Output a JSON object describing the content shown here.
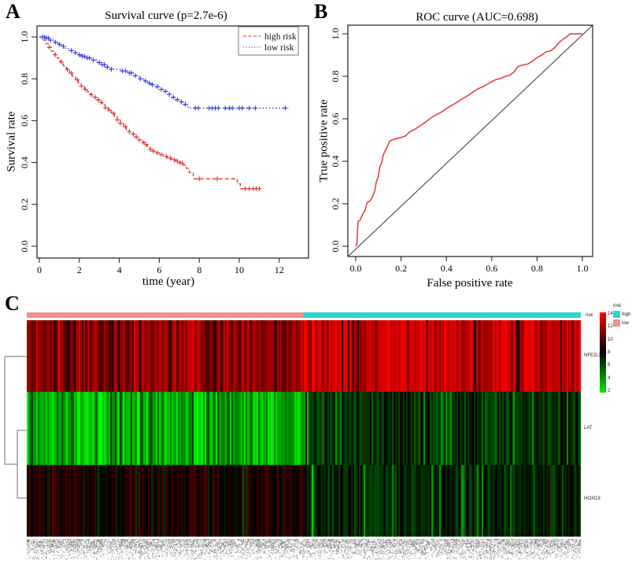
{
  "panels": {
    "a": {
      "label": "A",
      "title": "Survival curve (p=2.7e-6)",
      "xlabel": "time (year)",
      "ylabel": "Survival rate"
    },
    "b": {
      "label": "B",
      "title": "ROC curve (AUC=0.698)",
      "xlabel": "False positive rate",
      "ylabel": "True positive rate"
    },
    "c": {
      "label": "C",
      "annotation_label": "risk",
      "row_labels": [
        "NFE2L3",
        "LAT",
        "HOXD3"
      ],
      "colorbar_ticks": [
        "14",
        "12",
        "10",
        "8",
        "6",
        "4",
        "2"
      ],
      "legend_title": "risk",
      "legend_high": "high",
      "legend_low": "low",
      "high_color": "#2ed6d0",
      "low_color": "#f49090"
    }
  },
  "chart_data": [
    {
      "type": "line",
      "subtype": "kaplan-meier",
      "title": "Survival curve (p=2.7e-6)",
      "p_value": "2.7e-6",
      "xlabel": "time (year)",
      "ylabel": "Survival rate",
      "xlim": [
        0,
        13
      ],
      "ylim": [
        0,
        1
      ],
      "x_ticks": [
        0,
        2,
        4,
        6,
        8,
        10,
        12
      ],
      "y_ticks": [
        0.0,
        0.2,
        0.4,
        0.6,
        0.8,
        1.0
      ],
      "legend_position": "top-right",
      "series": [
        {
          "name": "high risk",
          "color": "#e23535",
          "linestyle": "dashed",
          "steps": [
            [
              0,
              1.0
            ],
            [
              0.15,
              0.985
            ],
            [
              0.3,
              0.968
            ],
            [
              0.45,
              0.95
            ],
            [
              0.6,
              0.932
            ],
            [
              0.75,
              0.915
            ],
            [
              0.9,
              0.898
            ],
            [
              1.05,
              0.88
            ],
            [
              1.2,
              0.862
            ],
            [
              1.35,
              0.845
            ],
            [
              1.5,
              0.828
            ],
            [
              1.65,
              0.812
            ],
            [
              1.8,
              0.796
            ],
            [
              1.95,
              0.78
            ],
            [
              2.1,
              0.765
            ],
            [
              2.25,
              0.75
            ],
            [
              2.4,
              0.738
            ],
            [
              2.55,
              0.724
            ],
            [
              2.7,
              0.712
            ],
            [
              2.85,
              0.7
            ],
            [
              3.0,
              0.688
            ],
            [
              3.15,
              0.675
            ],
            [
              3.3,
              0.662
            ],
            [
              3.45,
              0.65
            ],
            [
              3.6,
              0.636
            ],
            [
              3.75,
              0.62
            ],
            [
              3.9,
              0.604
            ],
            [
              4.05,
              0.588
            ],
            [
              4.2,
              0.572
            ],
            [
              4.35,
              0.558
            ],
            [
              4.5,
              0.547
            ],
            [
              4.65,
              0.536
            ],
            [
              4.8,
              0.522
            ],
            [
              4.95,
              0.508
            ],
            [
              5.1,
              0.497
            ],
            [
              5.25,
              0.486
            ],
            [
              5.4,
              0.473
            ],
            [
              5.55,
              0.463
            ],
            [
              5.7,
              0.454
            ],
            [
              5.85,
              0.447
            ],
            [
              6.0,
              0.438
            ],
            [
              6.2,
              0.43
            ],
            [
              6.4,
              0.422
            ],
            [
              6.6,
              0.414
            ],
            [
              6.8,
              0.407
            ],
            [
              7.0,
              0.398
            ],
            [
              7.2,
              0.388
            ],
            [
              7.35,
              0.372
            ],
            [
              7.5,
              0.352
            ],
            [
              7.7,
              0.322
            ],
            [
              9.2,
              0.322
            ],
            [
              9.9,
              0.299
            ],
            [
              10.05,
              0.275
            ],
            [
              11.0,
              0.275
            ]
          ],
          "censor_times": [
            0.5,
            0.8,
            1.1,
            1.4,
            1.6,
            1.9,
            2.1,
            2.3,
            2.6,
            2.8,
            2.95,
            3.1,
            3.3,
            3.5,
            3.7,
            3.9,
            4.05,
            4.3,
            4.5,
            4.7,
            4.85,
            5.0,
            5.2,
            5.35,
            5.55,
            5.7,
            5.9,
            6.1,
            6.35,
            6.55,
            6.75,
            6.9,
            7.05,
            7.15,
            8.0,
            8.9,
            10.3,
            10.5,
            10.7,
            10.85,
            11.0
          ]
        },
        {
          "name": "low risk",
          "color": "#3535d9",
          "linestyle": "dotted",
          "steps": [
            [
              0,
              1.0
            ],
            [
              0.3,
              0.995
            ],
            [
              0.5,
              0.985
            ],
            [
              0.7,
              0.975
            ],
            [
              0.9,
              0.965
            ],
            [
              1.1,
              0.955
            ],
            [
              1.3,
              0.945
            ],
            [
              1.5,
              0.935
            ],
            [
              1.7,
              0.925
            ],
            [
              1.9,
              0.915
            ],
            [
              2.1,
              0.908
            ],
            [
              2.3,
              0.9
            ],
            [
              2.6,
              0.89
            ],
            [
              2.9,
              0.878
            ],
            [
              3.1,
              0.868
            ],
            [
              3.3,
              0.856
            ],
            [
              3.5,
              0.846
            ],
            [
              4.1,
              0.838
            ],
            [
              4.4,
              0.828
            ],
            [
              4.7,
              0.815
            ],
            [
              5.0,
              0.8
            ],
            [
              5.2,
              0.79
            ],
            [
              5.4,
              0.78
            ],
            [
              5.6,
              0.772
            ],
            [
              5.8,
              0.762
            ],
            [
              6.0,
              0.75
            ],
            [
              6.2,
              0.74
            ],
            [
              6.4,
              0.726
            ],
            [
              6.6,
              0.712
            ],
            [
              6.8,
              0.7
            ],
            [
              7.0,
              0.69
            ],
            [
              7.2,
              0.678
            ],
            [
              7.4,
              0.665
            ],
            [
              7.55,
              0.66
            ],
            [
              12.5,
              0.66
            ]
          ],
          "censor_times": [
            0.15,
            0.25,
            0.35,
            0.45,
            0.55,
            0.8,
            1.0,
            1.2,
            1.6,
            1.8,
            2.0,
            2.15,
            2.25,
            2.4,
            2.5,
            2.7,
            3.0,
            3.15,
            3.25,
            3.4,
            3.6,
            4.15,
            4.3,
            4.5,
            4.6,
            4.8,
            5.05,
            5.3,
            5.5,
            5.65,
            5.9,
            6.1,
            6.3,
            6.5,
            6.7,
            6.9,
            7.1,
            7.3,
            7.8,
            7.95,
            8.5,
            8.65,
            8.8,
            8.95,
            9.3,
            9.5,
            9.65,
            10.0,
            10.15,
            10.5,
            10.8,
            12.3
          ]
        }
      ]
    },
    {
      "type": "line",
      "subtype": "roc",
      "title": "ROC curve (AUC=0.698)",
      "auc": 0.698,
      "xlabel": "False positive rate",
      "ylabel": "True positive rate",
      "xlim": [
        0,
        1
      ],
      "ylim": [
        0,
        1
      ],
      "x_ticks": [
        0.0,
        0.2,
        0.4,
        0.6,
        0.8,
        1.0
      ],
      "y_ticks": [
        0.0,
        0.2,
        0.4,
        0.6,
        0.8,
        1.0
      ],
      "diagonal": true,
      "color": "#e23535",
      "points": [
        [
          0,
          0
        ],
        [
          0.005,
          0.01
        ],
        [
          0.01,
          0.115
        ],
        [
          0.02,
          0.125
        ],
        [
          0.03,
          0.15
        ],
        [
          0.04,
          0.165
        ],
        [
          0.05,
          0.205
        ],
        [
          0.065,
          0.215
        ],
        [
          0.075,
          0.235
        ],
        [
          0.085,
          0.265
        ],
        [
          0.09,
          0.3
        ],
        [
          0.1,
          0.33
        ],
        [
          0.105,
          0.37
        ],
        [
          0.115,
          0.395
        ],
        [
          0.12,
          0.425
        ],
        [
          0.13,
          0.45
        ],
        [
          0.14,
          0.47
        ],
        [
          0.15,
          0.495
        ],
        [
          0.17,
          0.505
        ],
        [
          0.2,
          0.512
        ],
        [
          0.22,
          0.52
        ],
        [
          0.24,
          0.54
        ],
        [
          0.26,
          0.55
        ],
        [
          0.28,
          0.565
        ],
        [
          0.3,
          0.578
        ],
        [
          0.32,
          0.595
        ],
        [
          0.34,
          0.61
        ],
        [
          0.36,
          0.622
        ],
        [
          0.38,
          0.633
        ],
        [
          0.4,
          0.648
        ],
        [
          0.42,
          0.662
        ],
        [
          0.44,
          0.673
        ],
        [
          0.46,
          0.688
        ],
        [
          0.48,
          0.7
        ],
        [
          0.5,
          0.713
        ],
        [
          0.52,
          0.728
        ],
        [
          0.54,
          0.742
        ],
        [
          0.56,
          0.75
        ],
        [
          0.58,
          0.763
        ],
        [
          0.6,
          0.775
        ],
        [
          0.62,
          0.785
        ],
        [
          0.645,
          0.792
        ],
        [
          0.66,
          0.8
        ],
        [
          0.68,
          0.805
        ],
        [
          0.7,
          0.822
        ],
        [
          0.715,
          0.845
        ],
        [
          0.735,
          0.853
        ],
        [
          0.76,
          0.858
        ],
        [
          0.78,
          0.872
        ],
        [
          0.8,
          0.888
        ],
        [
          0.82,
          0.9
        ],
        [
          0.84,
          0.915
        ],
        [
          0.86,
          0.92
        ],
        [
          0.875,
          0.932
        ],
        [
          0.89,
          0.95
        ],
        [
          0.9,
          0.962
        ],
        [
          0.915,
          0.975
        ],
        [
          0.93,
          0.985
        ],
        [
          0.945,
          1.0
        ],
        [
          1.0,
          1.0
        ]
      ]
    },
    {
      "type": "heatmap",
      "n_columns": 352,
      "split_column": 176,
      "value_range": [
        2,
        14
      ],
      "colormap": [
        "green",
        "black",
        "red"
      ],
      "column_groups": [
        {
          "label": "low",
          "color": "#f49090"
        },
        {
          "label": "high",
          "color": "#2ed6d0"
        }
      ],
      "rows": [
        {
          "name": "NFE2L3",
          "low": {
            "mean": 11.2,
            "sd": 1.1,
            "outlier_prob": 0.05,
            "outlier_value": 9.0
          },
          "high": {
            "mean": 12.7,
            "sd": 0.8,
            "outlier_prob": 0.05,
            "outlier_value": 8.6
          }
        },
        {
          "name": "LAT",
          "low": {
            "mean": 3.9,
            "sd": 1.2,
            "outlier_prob": 0.07,
            "outlier_value": 6.8
          },
          "high": {
            "mean": 6.9,
            "sd": 0.9,
            "outlier_prob": 0.06,
            "outlier_value": 4.3
          }
        },
        {
          "name": "HOXD3",
          "low": {
            "mean": 8.6,
            "sd": 0.8,
            "outlier_prob": 0.06,
            "outlier_value": 6.2
          },
          "high": {
            "mean": 7.2,
            "sd": 0.7,
            "outlier_prob": 0.07,
            "outlier_value": 4.6
          }
        }
      ],
      "highlights": [
        {
          "row": 1,
          "col": 178,
          "value": 3.0
        },
        {
          "row": 2,
          "col": 181,
          "value": 2.6
        },
        {
          "row": 2,
          "col": 214,
          "value": 4.0
        },
        {
          "row": 2,
          "col": 262,
          "value": 4.2
        },
        {
          "row": 0,
          "col": 284,
          "value": 8.3
        }
      ],
      "column_labels_illegible": true
    }
  ]
}
